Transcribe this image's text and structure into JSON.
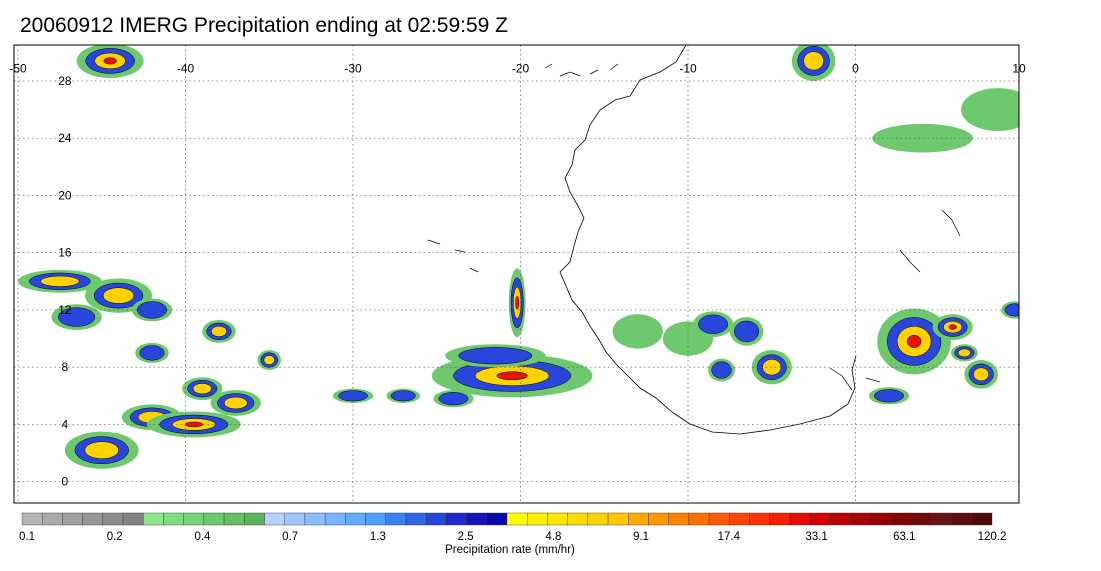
{
  "title": "20060912 IMERG Precipitation ending at 02:59:59 Z",
  "map": {
    "projection": "lat-lon",
    "lon_range": [
      -50,
      10
    ],
    "lat_range": [
      -1,
      31
    ],
    "lon_ticks": [
      {
        "value": -50,
        "label": "-50"
      },
      {
        "value": -40,
        "label": "-40"
      },
      {
        "value": -30,
        "label": "-30"
      },
      {
        "value": -20,
        "label": "-20"
      },
      {
        "value": -10,
        "label": "-10"
      },
      {
        "value": 0,
        "label": "0"
      },
      {
        "value": 10,
        "label": "10"
      }
    ],
    "lat_ticks": [
      {
        "value": 0,
        "label": "0"
      },
      {
        "value": 4,
        "label": "4"
      },
      {
        "value": 8,
        "label": "8"
      },
      {
        "value": 12,
        "label": "12"
      },
      {
        "value": 16,
        "label": "16"
      },
      {
        "value": 20,
        "label": "20"
      },
      {
        "value": 24,
        "label": "24"
      },
      {
        "value": 28,
        "label": "28"
      }
    ],
    "grid": "dotted",
    "coastline": "West Africa",
    "precip_cells": [
      {
        "lon": -44.5,
        "lat": 29.4,
        "rx": 2.0,
        "ry": 1.2,
        "peak": 3
      },
      {
        "lon": -2.5,
        "lat": 29.4,
        "rx": 1.3,
        "ry": 1.4,
        "peak": 2
      },
      {
        "lon": 8.5,
        "lat": 26.0,
        "rx": 2.2,
        "ry": 1.5,
        "peak": 0
      },
      {
        "lon": 4.0,
        "lat": 24.0,
        "rx": 3.0,
        "ry": 1.0,
        "peak": 0
      },
      {
        "lon": -47.5,
        "lat": 14.0,
        "rx": 2.5,
        "ry": 0.8,
        "peak": 2
      },
      {
        "lon": -44.0,
        "lat": 13.0,
        "rx": 2.0,
        "ry": 1.2,
        "peak": 2
      },
      {
        "lon": -46.5,
        "lat": 11.5,
        "rx": 1.5,
        "ry": 0.9,
        "peak": 1
      },
      {
        "lon": -42.0,
        "lat": 12.0,
        "rx": 1.2,
        "ry": 0.8,
        "peak": 1
      },
      {
        "lon": -38.0,
        "lat": 10.5,
        "rx": 1.0,
        "ry": 0.8,
        "peak": 2
      },
      {
        "lon": -42.0,
        "lat": 9.0,
        "rx": 1.0,
        "ry": 0.7,
        "peak": 1
      },
      {
        "lon": -35.0,
        "lat": 8.5,
        "rx": 0.7,
        "ry": 0.7,
        "peak": 2
      },
      {
        "lon": -39.0,
        "lat": 6.5,
        "rx": 1.2,
        "ry": 0.8,
        "peak": 2
      },
      {
        "lon": -37.0,
        "lat": 5.5,
        "rx": 1.5,
        "ry": 0.9,
        "peak": 2
      },
      {
        "lon": -42.0,
        "lat": 4.5,
        "rx": 1.8,
        "ry": 0.9,
        "peak": 2
      },
      {
        "lon": -39.5,
        "lat": 4.0,
        "rx": 2.8,
        "ry": 0.9,
        "peak": 3
      },
      {
        "lon": -45.0,
        "lat": 2.2,
        "rx": 2.2,
        "ry": 1.3,
        "peak": 2
      },
      {
        "lon": -30.0,
        "lat": 6.0,
        "rx": 1.2,
        "ry": 0.5,
        "peak": 1
      },
      {
        "lon": -27.0,
        "lat": 6.0,
        "rx": 1.0,
        "ry": 0.5,
        "peak": 1
      },
      {
        "lon": -24.0,
        "lat": 5.8,
        "rx": 1.2,
        "ry": 0.6,
        "peak": 1
      },
      {
        "lon": -20.5,
        "lat": 7.4,
        "rx": 4.8,
        "ry": 1.5,
        "peak": 3
      },
      {
        "lon": -21.5,
        "lat": 8.8,
        "rx": 3.0,
        "ry": 0.8,
        "peak": 1
      },
      {
        "lon": -20.2,
        "lat": 12.5,
        "rx": 0.5,
        "ry": 2.4,
        "peak": 3
      },
      {
        "lon": -13.0,
        "lat": 10.5,
        "rx": 1.5,
        "ry": 1.2,
        "peak": 0
      },
      {
        "lon": -10.0,
        "lat": 10.0,
        "rx": 1.5,
        "ry": 1.2,
        "peak": 0
      },
      {
        "lon": -8.5,
        "lat": 11.0,
        "rx": 1.2,
        "ry": 0.9,
        "peak": 1
      },
      {
        "lon": -6.5,
        "lat": 10.5,
        "rx": 1.0,
        "ry": 1.0,
        "peak": 1
      },
      {
        "lon": -5.0,
        "lat": 8.0,
        "rx": 1.2,
        "ry": 1.2,
        "peak": 2
      },
      {
        "lon": -8.0,
        "lat": 7.8,
        "rx": 0.8,
        "ry": 0.8,
        "peak": 1
      },
      {
        "lon": 3.5,
        "lat": 9.8,
        "rx": 2.2,
        "ry": 2.3,
        "peak": 3
      },
      {
        "lon": 5.8,
        "lat": 10.8,
        "rx": 1.2,
        "ry": 0.9,
        "peak": 3
      },
      {
        "lon": 7.5,
        "lat": 7.5,
        "rx": 1.0,
        "ry": 1.0,
        "peak": 2
      },
      {
        "lon": 6.5,
        "lat": 9.0,
        "rx": 0.8,
        "ry": 0.6,
        "peak": 2
      },
      {
        "lon": 2.0,
        "lat": 6.0,
        "rx": 1.2,
        "ry": 0.6,
        "peak": 1
      },
      {
        "lon": 9.5,
        "lat": 12.0,
        "rx": 0.8,
        "ry": 0.6,
        "peak": 1
      }
    ]
  },
  "colorbar": {
    "label": "Precipitation rate (mm/hr)",
    "tick_labels": [
      "0.1",
      "0.2",
      "0.4",
      "0.7",
      "1.3",
      "2.5",
      "4.8",
      "9.1",
      "17.4",
      "33.1",
      "63.1",
      "120.2"
    ],
    "colors": [
      "#b4b4b4",
      "#aaaaaa",
      "#a0a0a0",
      "#969696",
      "#8c8c8c",
      "#828282",
      "#8ce68c",
      "#82dc82",
      "#78d278",
      "#6ec86e",
      "#64be64",
      "#5ab45a",
      "#b4d2ff",
      "#a0c8ff",
      "#8cbeff",
      "#78b4ff",
      "#64aaff",
      "#50a0ff",
      "#3c82f0",
      "#3264e6",
      "#2846dc",
      "#1e28d2",
      "#1414be",
      "#0a0aaa",
      "#ffff00",
      "#fff000",
      "#ffe600",
      "#ffdc00",
      "#ffd200",
      "#ffc800",
      "#ffaa00",
      "#ff9600",
      "#ff8200",
      "#ff6e00",
      "#ff5a00",
      "#ff4600",
      "#ff3200",
      "#f51e00",
      "#e60a00",
      "#d20000",
      "#be0000",
      "#aa0000",
      "#960000",
      "#820000",
      "#6e0a0a",
      "#641414",
      "#5a0f0f",
      "#500a0a"
    ]
  },
  "intensity_colors": [
    "#6ec86e",
    "#2846dc",
    "#ffd200",
    "#e61400"
  ]
}
